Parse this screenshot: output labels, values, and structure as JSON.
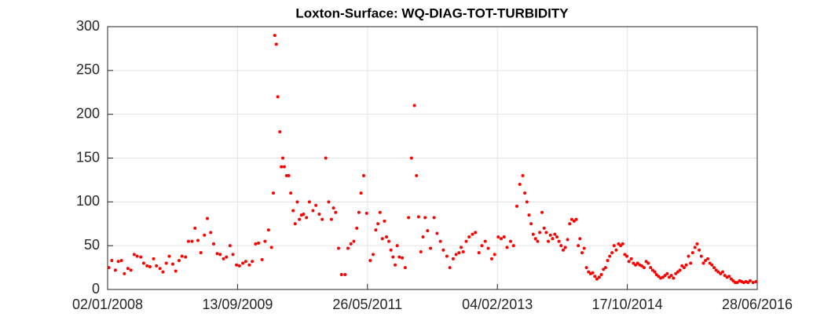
{
  "chart_data": {
    "type": "scatter",
    "title": "Loxton-Surface: WQ-DIAG-TOT-TURBIDITY",
    "color": "#ff0000",
    "grid": true,
    "xlim": [
      "02/01/2008",
      "28/06/2016"
    ],
    "xticks": [
      "02/01/2008",
      "13/09/2009",
      "26/05/2011",
      "04/02/2013",
      "17/10/2014",
      "28/06/2016"
    ],
    "ylim": [
      0,
      300
    ],
    "yticks": [
      0,
      50,
      100,
      150,
      200,
      250,
      300
    ],
    "x": [
      "08/01/2008",
      "22/01/2008",
      "08/02/2008",
      "22/02/2008",
      "08/03/2008",
      "22/03/2008",
      "08/04/2008",
      "22/04/2008",
      "08/05/2008",
      "22/05/2008",
      "08/06/2008",
      "22/06/2008",
      "08/07/2008",
      "22/07/2008",
      "08/08/2008",
      "22/08/2008",
      "08/09/2008",
      "22/09/2008",
      "08/10/2008",
      "22/10/2008",
      "08/11/2008",
      "22/11/2008",
      "08/12/2008",
      "22/12/2008",
      "08/01/2009",
      "22/01/2009",
      "08/02/2009",
      "22/02/2009",
      "08/03/2009",
      "22/03/2009",
      "08/04/2009",
      "22/04/2009",
      "08/05/2009",
      "22/05/2009",
      "08/06/2009",
      "22/06/2009",
      "08/07/2009",
      "22/07/2009",
      "08/08/2009",
      "22/08/2009",
      "08/09/2009",
      "22/09/2009",
      "08/10/2009",
      "22/10/2009",
      "08/11/2009",
      "22/11/2009",
      "08/12/2009",
      "22/12/2009",
      "08/01/2010",
      "22/01/2010",
      "08/02/2010",
      "22/02/2010",
      "03/03/2010",
      "10/03/2010",
      "17/03/2010",
      "24/03/2010",
      "03/04/2010",
      "10/04/2010",
      "17/04/2010",
      "24/04/2010",
      "05/05/2010",
      "15/05/2010",
      "25/05/2010",
      "05/06/2010",
      "15/06/2010",
      "25/06/2010",
      "05/07/2010",
      "15/07/2010",
      "25/07/2010",
      "08/08/2010",
      "22/08/2010",
      "08/09/2010",
      "22/09/2010",
      "08/10/2010",
      "22/10/2010",
      "08/11/2010",
      "22/11/2010",
      "05/12/2010",
      "15/12/2010",
      "25/12/2010",
      "08/01/2011",
      "22/01/2011",
      "08/02/2011",
      "22/02/2011",
      "08/03/2011",
      "22/03/2011",
      "05/04/2011",
      "15/04/2011",
      "25/04/2011",
      "08/05/2011",
      "22/05/2011",
      "08/06/2011",
      "22/06/2011",
      "05/07/2011",
      "15/07/2011",
      "25/07/2011",
      "05/08/2011",
      "15/08/2011",
      "25/08/2011",
      "05/09/2011",
      "15/09/2011",
      "25/09/2011",
      "05/10/2011",
      "15/10/2011",
      "25/10/2011",
      "08/11/2011",
      "22/11/2011",
      "08/12/2011",
      "22/12/2011",
      "05/01/2012",
      "15/01/2012",
      "25/01/2012",
      "05/02/2012",
      "15/02/2012",
      "25/02/2012",
      "08/03/2012",
      "22/03/2012",
      "08/04/2012",
      "22/04/2012",
      "08/05/2012",
      "22/05/2012",
      "08/06/2012",
      "22/06/2012",
      "08/07/2012",
      "22/07/2012",
      "05/08/2012",
      "15/08/2012",
      "25/08/2012",
      "08/09/2012",
      "22/09/2012",
      "08/10/2012",
      "22/10/2012",
      "08/11/2012",
      "22/11/2012",
      "08/12/2012",
      "22/12/2012",
      "08/01/2013",
      "22/01/2013",
      "08/02/2013",
      "22/02/2013",
      "08/03/2013",
      "22/03/2013",
      "08/04/2013",
      "22/04/2013",
      "08/05/2013",
      "22/05/2013",
      "05/06/2013",
      "15/06/2013",
      "25/06/2013",
      "05/07/2013",
      "15/07/2013",
      "25/07/2013",
      "05/08/2013",
      "15/08/2013",
      "25/08/2013",
      "05/09/2013",
      "15/09/2013",
      "25/09/2013",
      "05/10/2013",
      "15/10/2013",
      "25/10/2013",
      "05/11/2013",
      "15/11/2013",
      "25/11/2013",
      "05/12/2013",
      "15/12/2013",
      "25/12/2013",
      "05/01/2014",
      "15/01/2014",
      "25/01/2014",
      "05/02/2014",
      "15/02/2014",
      "25/02/2014",
      "05/03/2014",
      "15/03/2014",
      "25/03/2014",
      "05/04/2014",
      "15/04/2014",
      "25/04/2014",
      "05/05/2014",
      "15/05/2014",
      "25/05/2014",
      "05/06/2014",
      "15/06/2014",
      "25/06/2014",
      "05/07/2014",
      "15/07/2014",
      "25/07/2014",
      "05/08/2014",
      "15/08/2014",
      "25/08/2014",
      "05/09/2014",
      "15/09/2014",
      "25/09/2014",
      "05/10/2014",
      "15/10/2014",
      "25/10/2014",
      "05/11/2014",
      "15/11/2014",
      "25/11/2014",
      "05/12/2014",
      "15/12/2014",
      "25/12/2014",
      "05/01/2015",
      "15/01/2015",
      "25/01/2015",
      "05/02/2015",
      "15/02/2015",
      "25/02/2015",
      "05/03/2015",
      "15/03/2015",
      "25/03/2015",
      "05/04/2015",
      "15/04/2015",
      "25/04/2015",
      "05/05/2015",
      "15/05/2015",
      "25/05/2015",
      "05/06/2015",
      "15/06/2015",
      "25/06/2015",
      "05/07/2015",
      "15/07/2015",
      "25/07/2015",
      "05/08/2015",
      "15/08/2015",
      "25/08/2015",
      "05/09/2015",
      "15/09/2015",
      "25/09/2015",
      "05/10/2015",
      "15/10/2015",
      "25/10/2015",
      "05/11/2015",
      "15/11/2015",
      "25/11/2015",
      "05/12/2015",
      "15/12/2015",
      "25/12/2015",
      "05/01/2016",
      "15/01/2016",
      "25/01/2016",
      "05/02/2016",
      "15/02/2016",
      "25/02/2016",
      "05/03/2016",
      "15/03/2016",
      "25/03/2016",
      "05/04/2016",
      "15/04/2016",
      "25/04/2016",
      "05/05/2016",
      "15/05/2016",
      "25/05/2016",
      "08/06/2016",
      "22/06/2016"
    ],
    "values": [
      25,
      33,
      22,
      32,
      33,
      18,
      24,
      22,
      40,
      38,
      37,
      30,
      27,
      26,
      35,
      27,
      24,
      20,
      30,
      38,
      29,
      21,
      33,
      38,
      37,
      55,
      55,
      70,
      56,
      42,
      62,
      81,
      65,
      52,
      41,
      40,
      35,
      37,
      50,
      40,
      28,
      27,
      30,
      32,
      28,
      32,
      52,
      53,
      34,
      55,
      68,
      48,
      110,
      290,
      280,
      220,
      180,
      140,
      150,
      140,
      130,
      130,
      110,
      90,
      75,
      100,
      80,
      85,
      86,
      82,
      100,
      90,
      96,
      86,
      80,
      150,
      100,
      80,
      93,
      88,
      47,
      17,
      17,
      47,
      52,
      55,
      70,
      88,
      110,
      130,
      87,
      33,
      40,
      68,
      75,
      88,
      58,
      78,
      60,
      55,
      45,
      37,
      28,
      50,
      37,
      36,
      25,
      82,
      150,
      210,
      130,
      83,
      43,
      60,
      82,
      67,
      47,
      82,
      64,
      55,
      45,
      38,
      25,
      35,
      40,
      42,
      48,
      43,
      55,
      60,
      63,
      65,
      42,
      50,
      55,
      47,
      35,
      40,
      60,
      58,
      60,
      48,
      55,
      50,
      95,
      120,
      130,
      110,
      100,
      85,
      75,
      63,
      58,
      55,
      65,
      88,
      70,
      65,
      55,
      62,
      58,
      63,
      60,
      55,
      50,
      45,
      48,
      57,
      75,
      80,
      78,
      80,
      50,
      58,
      42,
      47,
      25,
      20,
      18,
      19,
      15,
      12,
      14,
      17,
      23,
      25,
      33,
      38,
      42,
      50,
      45,
      52,
      50,
      52,
      40,
      38,
      32,
      35,
      30,
      28,
      30,
      28,
      27,
      25,
      32,
      30,
      25,
      22,
      20,
      17,
      15,
      13,
      14,
      16,
      18,
      14,
      16,
      13,
      18,
      20,
      22,
      27,
      25,
      28,
      38,
      30,
      42,
      48,
      52,
      45,
      38,
      30,
      33,
      35,
      30,
      28,
      25,
      22,
      20,
      18,
      20,
      16,
      14,
      15,
      12,
      10,
      8,
      8,
      10,
      9,
      8,
      9,
      8,
      10,
      8,
      9
    ]
  }
}
